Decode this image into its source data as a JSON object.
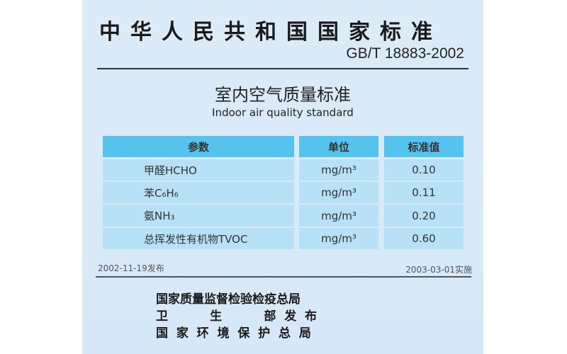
{
  "header": {
    "national_standard": "中华人民共和国国家标准",
    "code": "GB/T 18883-2002"
  },
  "title": {
    "zh": "室内空气质量标准",
    "en": "Indoor air quality standard"
  },
  "table": {
    "columns": [
      "参数",
      "单位",
      "标准值"
    ],
    "rows": [
      {
        "param": "甲醛HCHO",
        "unit": "mg/m³",
        "value": "0.10"
      },
      {
        "param": "苯C₆H₆",
        "unit": "mg/m³",
        "value": "0.11"
      },
      {
        "param": "氨NH₃",
        "unit": "mg/m³",
        "value": "0.20"
      },
      {
        "param": "总挥发性有机物TVOC",
        "unit": "mg/m³",
        "value": "0.60"
      }
    ]
  },
  "dates": {
    "issued": "2002-11-19发布",
    "implemented": "2003-03-01实施"
  },
  "publishers": [
    "国家质量监督检验检疫总局",
    "卫          生          部  发  布",
    "国  家  环  境  保  护  总  局"
  ],
  "colors": {
    "background": "#dcebf8",
    "header_cell": "#55c3ee",
    "body_cell": "#b7e1f7"
  }
}
